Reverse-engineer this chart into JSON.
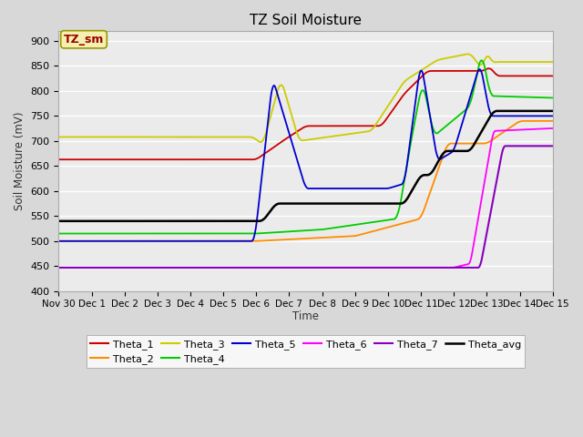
{
  "title": "TZ Soil Moisture",
  "xlabel": "Time",
  "ylabel": "Soil Moisture (mV)",
  "ylim": [
    400,
    920
  ],
  "yticks": [
    400,
    450,
    500,
    550,
    600,
    650,
    700,
    750,
    800,
    850,
    900
  ],
  "figsize": [
    6.4,
    4.8
  ],
  "dpi": 100,
  "bg_color": "#d8d8d8",
  "plot_bg": "#ebebeb",
  "legend_label": "TZ_sm",
  "series_colors": {
    "Theta_1": "#cc0000",
    "Theta_2": "#ff8c00",
    "Theta_3": "#cccc00",
    "Theta_4": "#00cc00",
    "Theta_5": "#0000cc",
    "Theta_6": "#ff00ff",
    "Theta_7": "#8800bb",
    "Theta_avg": "#000000"
  },
  "x_tick_labels": [
    "Nov 30",
    "Dec 1",
    "Dec 2",
    "Dec 3",
    "Dec 4",
    "Dec 5",
    "Dec 6",
    "Dec 7",
    "Dec 8",
    "Dec 9",
    "Dec 10",
    "Dec 11",
    "Dec 12",
    "Dec 13",
    "Dec 14",
    "Dec 15"
  ],
  "n_points": 600
}
